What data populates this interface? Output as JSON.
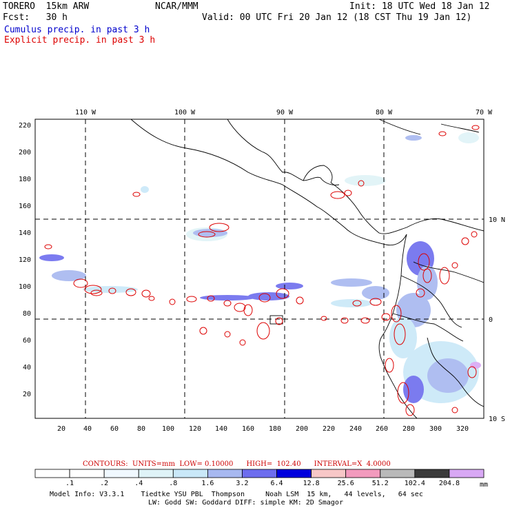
{
  "header": {
    "model": "TORERO  15km ARW",
    "org": "NCAR/MMM",
    "init": "Init: 18 UTC Wed 18 Jan 12",
    "fcst": "Fcst:   30 h",
    "valid": "Valid: 00 UTC Fri 20 Jan 12 (18 CST Thu 19 Jan 12)",
    "legend_cumulus": "Cumulus precip. in past 3 h",
    "legend_explicit": "Explicit precip. in past 3 h"
  },
  "colors": {
    "cumulus": "#0000cc",
    "explicit": "#dd0000",
    "coast": "#000000"
  },
  "map": {
    "top_lon_labels": [
      "110 W",
      "100 W",
      "90 W",
      "80 W",
      "70 W"
    ],
    "right_lat_labels": [
      "10 N",
      "0",
      "10 S"
    ],
    "y_grid_ticks": [
      "220",
      "200",
      "180",
      "160",
      "140",
      "120",
      "100",
      "80",
      "60",
      "40",
      "20"
    ],
    "x_grid_ticks": [
      "20",
      "40",
      "60",
      "80",
      "100",
      "120",
      "140",
      "160",
      "180",
      "200",
      "220",
      "240",
      "260",
      "280",
      "300",
      "320"
    ]
  },
  "contours_line": "CONTOURS:  UNITS=mm  LOW= 0.10000      HIGH=  102.40      INTERVAL=X  4.0000",
  "colorbar": {
    "labels": [
      ".1",
      ".2",
      ".4",
      ".8",
      "1.6",
      "3.2",
      "6.4",
      "12.8",
      "25.6",
      "51.2",
      "102.4",
      "204.8"
    ],
    "unit": "mm",
    "colors": [
      "#ffffff",
      "#ffffff",
      "#f0f8ff",
      "#dff3f7",
      "#c9e8f8",
      "#a7b8f0",
      "#6d6dee",
      "#0000dd",
      "#f7c7c7",
      "#f29abd",
      "#b9b9b9",
      "#3a3a3a",
      "#d8a8f4"
    ]
  },
  "footer": {
    "line1": "Model Info: V3.3.1    Tiedtke YSU PBL  Thompson     Noah LSM  15 km,   44 levels,   64 sec",
    "line2": "LW: Godd SW: Goddard DIFF: simple KM: 2D Smagor"
  }
}
